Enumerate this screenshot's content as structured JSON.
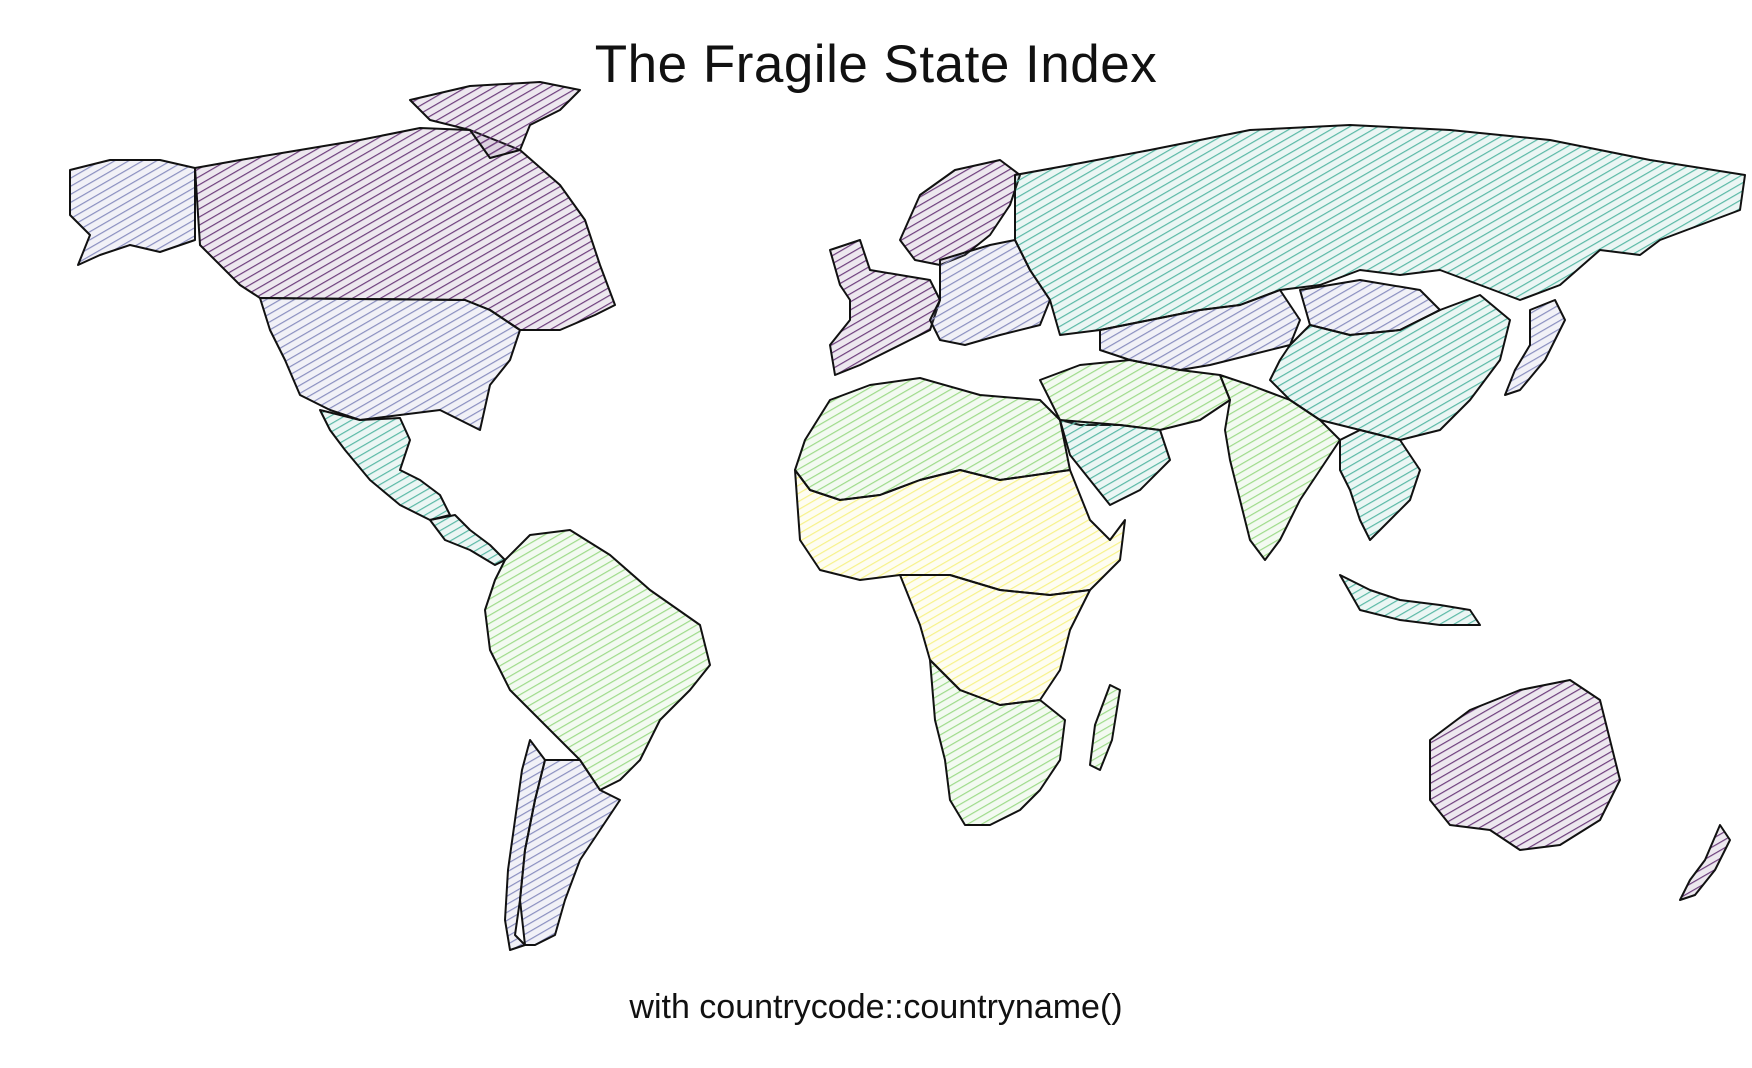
{
  "map": {
    "title": "The Fragile State Index",
    "caption": "with countrycode::countryname()",
    "fill_style": "hachure",
    "palette": {
      "most_stable": "#6e3f7d",
      "stable": "#8a8fc0",
      "moderate": "#5ab9a6",
      "warning": "#9edb8a",
      "most_fragile": "#f7f28a"
    },
    "regions": [
      {
        "name": "Canada",
        "level": "most_stable"
      },
      {
        "name": "Greenland",
        "level": "most_stable"
      },
      {
        "name": "Alaska",
        "level": "stable"
      },
      {
        "name": "United States",
        "level": "stable"
      },
      {
        "name": "Mexico",
        "level": "moderate"
      },
      {
        "name": "Central America",
        "level": "moderate"
      },
      {
        "name": "South America North",
        "level": "warning"
      },
      {
        "name": "Chile",
        "level": "stable"
      },
      {
        "name": "Argentina",
        "level": "stable"
      },
      {
        "name": "Western Europe",
        "level": "most_stable"
      },
      {
        "name": "Scandinavia",
        "level": "most_stable"
      },
      {
        "name": "Eastern Europe",
        "level": "stable"
      },
      {
        "name": "Russia",
        "level": "moderate"
      },
      {
        "name": "North Africa",
        "level": "warning"
      },
      {
        "name": "Sahel",
        "level": "most_fragile"
      },
      {
        "name": "Central Africa",
        "level": "most_fragile"
      },
      {
        "name": "Southern Africa",
        "level": "warning"
      },
      {
        "name": "Middle East",
        "level": "warning"
      },
      {
        "name": "Arabia",
        "level": "moderate"
      },
      {
        "name": "Central Asia",
        "level": "stable"
      },
      {
        "name": "Mongolia",
        "level": "stable"
      },
      {
        "name": "China",
        "level": "moderate"
      },
      {
        "name": "India",
        "level": "warning"
      },
      {
        "name": "Southeast Asia",
        "level": "moderate"
      },
      {
        "name": "Japan",
        "level": "stable"
      },
      {
        "name": "Indonesia",
        "level": "moderate"
      },
      {
        "name": "Australia",
        "level": "most_stable"
      },
      {
        "name": "New Zealand",
        "level": "most_stable"
      },
      {
        "name": "Madagascar",
        "level": "warning"
      }
    ]
  }
}
